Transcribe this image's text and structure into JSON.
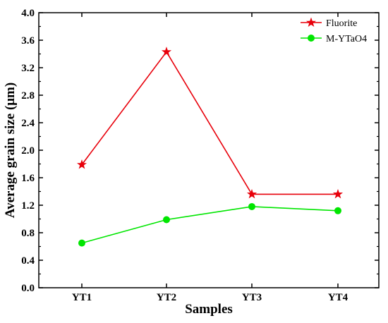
{
  "chart_data": {
    "type": "line",
    "title": "",
    "xlabel": "Samples",
    "ylabel": "Average grain size (μm)",
    "categories": [
      "YT1",
      "YT2",
      "YT3",
      "YT4"
    ],
    "ylim": [
      0.0,
      4.0
    ],
    "yticks": [
      "0.0",
      "0.4",
      "0.8",
      "1.2",
      "1.6",
      "2.0",
      "2.4",
      "2.8",
      "3.2",
      "3.6",
      "4.0"
    ],
    "legend_position": "top-right",
    "grid": false,
    "series": [
      {
        "name": "Fluorite",
        "marker": "star",
        "color": "#e8000b",
        "values": [
          1.79,
          3.43,
          1.36,
          1.36
        ]
      },
      {
        "name": "M-YTaO4",
        "marker": "circle",
        "color": "#00e600",
        "values": [
          0.65,
          0.99,
          1.18,
          1.12
        ]
      }
    ]
  }
}
